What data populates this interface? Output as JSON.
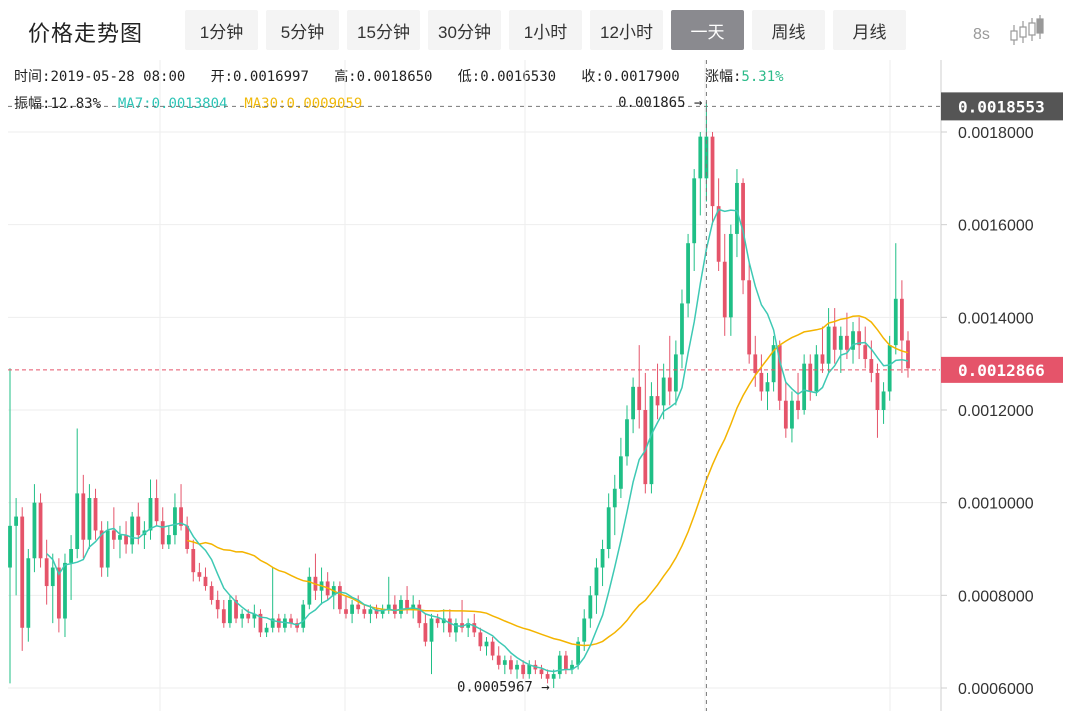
{
  "header": {
    "title": "价格走势图",
    "tabs": [
      {
        "label": "1分钟"
      },
      {
        "label": "5分钟"
      },
      {
        "label": "15分钟"
      },
      {
        "label": "30分钟"
      },
      {
        "label": "1小时"
      },
      {
        "label": "12小时"
      },
      {
        "label": "一天",
        "active": true
      },
      {
        "label": "周线"
      },
      {
        "label": "月线"
      }
    ],
    "refresh": "8s",
    "chart_icon": "candlestick-chart-icon"
  },
  "info": {
    "time_label": "时间:",
    "time": "2019-05-28 08:00",
    "open_label": "开:",
    "open": "0.0016997",
    "high_label": "高:",
    "high": "0.0018650",
    "low_label": "低:",
    "low": "0.0016530",
    "close_label": "收:",
    "close": "0.0017900",
    "change_label": "涨幅:",
    "change": "5.31%",
    "amp_label": "振幅:",
    "amp": "12.83%",
    "ma7_label": "MA7:",
    "ma7": "0.0013804",
    "ma30_label": "MA30:",
    "ma30": "0.0009059"
  },
  "colors": {
    "up": "#1fbf86",
    "down": "#e5546a",
    "ma7": "#3ec9b4",
    "ma30": "#f4b400",
    "grid": "#eeeeee",
    "crosshair": "#777777",
    "current": "#e5546a",
    "hover_tag": "#555555"
  },
  "chart_data": {
    "type": "candlestick",
    "ylim": [
      0.00058,
      0.00192
    ],
    "yticks": [
      "0.0018000",
      "0.0016000",
      "0.0014000",
      "0.0012000",
      "0.0010000",
      "0.0008000",
      "0.0006000"
    ],
    "high_marker": {
      "label": "0.001865 →",
      "value": 0.001865
    },
    "low_marker": {
      "label": "0.0005967 →",
      "value": 0.0005967
    },
    "crosshair_value": "0.0018553",
    "current_price": "0.0012866",
    "ohlc": [
      [
        0.00086,
        0.00129,
        0.00061,
        0.00095
      ],
      [
        0.00095,
        0.00101,
        0.0008,
        0.00097
      ],
      [
        0.00097,
        0.00099,
        0.00068,
        0.00073
      ],
      [
        0.00073,
        0.0009,
        0.0007,
        0.00088
      ],
      [
        0.00088,
        0.00104,
        0.00085,
        0.001
      ],
      [
        0.001,
        0.00102,
        0.00086,
        0.00088
      ],
      [
        0.00088,
        0.00092,
        0.00078,
        0.00082
      ],
      [
        0.00082,
        0.00089,
        0.00074,
        0.00086
      ],
      [
        0.00086,
        0.00088,
        0.00072,
        0.00075
      ],
      [
        0.00075,
        0.00089,
        0.00071,
        0.00087
      ],
      [
        0.00087,
        0.00093,
        0.00079,
        0.0009
      ],
      [
        0.0009,
        0.00116,
        0.00088,
        0.00102
      ],
      [
        0.00102,
        0.00106,
        0.00088,
        0.00092
      ],
      [
        0.00092,
        0.00104,
        0.0009,
        0.00101
      ],
      [
        0.00101,
        0.00103,
        0.00092,
        0.00094
      ],
      [
        0.00094,
        0.00096,
        0.00084,
        0.00086
      ],
      [
        0.00086,
        0.00096,
        0.00084,
        0.00094
      ],
      [
        0.00094,
        0.00099,
        0.0009,
        0.00092
      ],
      [
        0.00092,
        0.00095,
        0.00088,
        0.00093
      ],
      [
        0.00093,
        0.00096,
        0.00089,
        0.00091
      ],
      [
        0.00091,
        0.00098,
        0.00089,
        0.00097
      ],
      [
        0.00097,
        0.001,
        0.00091,
        0.00093
      ],
      [
        0.00093,
        0.00096,
        0.0009,
        0.00094
      ],
      [
        0.00094,
        0.00105,
        0.00092,
        0.00101
      ],
      [
        0.00101,
        0.00105,
        0.00095,
        0.00096
      ],
      [
        0.00096,
        0.00099,
        0.0009,
        0.00091
      ],
      [
        0.00091,
        0.00095,
        0.0009,
        0.00093
      ],
      [
        0.00093,
        0.00102,
        0.00091,
        0.00099
      ],
      [
        0.00099,
        0.00104,
        0.00094,
        0.00095
      ],
      [
        0.00095,
        0.00097,
        0.00089,
        0.0009
      ],
      [
        0.0009,
        0.00092,
        0.00083,
        0.00085
      ],
      [
        0.00085,
        0.00087,
        0.00083,
        0.00084
      ],
      [
        0.00084,
        0.00086,
        0.00081,
        0.00082
      ],
      [
        0.00082,
        0.00083,
        0.00078,
        0.00079
      ],
      [
        0.00079,
        0.00081,
        0.00075,
        0.00077
      ],
      [
        0.00077,
        0.00079,
        0.00073,
        0.00074
      ],
      [
        0.00074,
        0.0008,
        0.00073,
        0.00079
      ],
      [
        0.00079,
        0.0008,
        0.00074,
        0.00075
      ],
      [
        0.00075,
        0.00077,
        0.00073,
        0.00076
      ],
      [
        0.00076,
        0.00077,
        0.00074,
        0.00075
      ],
      [
        0.00075,
        0.00078,
        0.00073,
        0.00076
      ],
      [
        0.00076,
        0.00077,
        0.00071,
        0.00072
      ],
      [
        0.00072,
        0.00074,
        0.00071,
        0.00073
      ],
      [
        0.00073,
        0.00086,
        0.00072,
        0.00075
      ],
      [
        0.00075,
        0.00076,
        0.00072,
        0.00073
      ],
      [
        0.00073,
        0.00076,
        0.00072,
        0.00075
      ],
      [
        0.00075,
        0.00076,
        0.00073,
        0.00074
      ],
      [
        0.00074,
        0.00075,
        0.00072,
        0.00073
      ],
      [
        0.00073,
        0.00079,
        0.00072,
        0.00078
      ],
      [
        0.00078,
        0.00086,
        0.00077,
        0.00084
      ],
      [
        0.00084,
        0.00089,
        0.00079,
        0.00081
      ],
      [
        0.00081,
        0.00086,
        0.00078,
        0.00083
      ],
      [
        0.00083,
        0.00085,
        0.00079,
        0.0008
      ],
      [
        0.0008,
        0.00083,
        0.00077,
        0.00082
      ],
      [
        0.00082,
        0.00083,
        0.00076,
        0.00077
      ],
      [
        0.00077,
        0.0008,
        0.00075,
        0.00076
      ],
      [
        0.00076,
        0.00079,
        0.00074,
        0.00078
      ],
      [
        0.00078,
        0.0008,
        0.00076,
        0.00077
      ],
      [
        0.00077,
        0.00078,
        0.00075,
        0.00076
      ],
      [
        0.00076,
        0.00078,
        0.00074,
        0.00077
      ],
      [
        0.00077,
        0.00078,
        0.00075,
        0.00076
      ],
      [
        0.00076,
        0.00078,
        0.00075,
        0.00077
      ],
      [
        0.00077,
        0.00084,
        0.00076,
        0.00078
      ],
      [
        0.00078,
        0.0008,
        0.00075,
        0.00076
      ],
      [
        0.00076,
        0.0008,
        0.00075,
        0.00079
      ],
      [
        0.00079,
        0.00082,
        0.00076,
        0.00077
      ],
      [
        0.00077,
        0.0008,
        0.00075,
        0.00078
      ],
      [
        0.00078,
        0.00079,
        0.00073,
        0.00074
      ],
      [
        0.00074,
        0.00076,
        0.00069,
        0.0007
      ],
      [
        0.0007,
        0.00076,
        0.00063,
        0.00075
      ],
      [
        0.00075,
        0.00076,
        0.00073,
        0.00074
      ],
      [
        0.00074,
        0.00077,
        0.00072,
        0.00075
      ],
      [
        0.00075,
        0.00077,
        0.00071,
        0.00072
      ],
      [
        0.00072,
        0.00075,
        0.0007,
        0.00074
      ],
      [
        0.00074,
        0.00079,
        0.00072,
        0.00073
      ],
      [
        0.00073,
        0.00075,
        0.00071,
        0.00074
      ],
      [
        0.00074,
        0.00076,
        0.00071,
        0.00072
      ],
      [
        0.00072,
        0.00073,
        0.00068,
        0.00069
      ],
      [
        0.00069,
        0.00071,
        0.00067,
        0.0007
      ],
      [
        0.0007,
        0.00071,
        0.00066,
        0.00067
      ],
      [
        0.00067,
        0.00069,
        0.00064,
        0.00065
      ],
      [
        0.00065,
        0.00067,
        0.00063,
        0.00066
      ],
      [
        0.00066,
        0.00067,
        0.00063,
        0.00064
      ],
      [
        0.00064,
        0.00066,
        0.00062,
        0.00065
      ],
      [
        0.00065,
        0.00066,
        0.00062,
        0.00063
      ],
      [
        0.00063,
        0.00066,
        0.00062,
        0.00065
      ],
      [
        0.00065,
        0.00066,
        0.00063,
        0.00064
      ],
      [
        0.00064,
        0.00065,
        0.00062,
        0.00063
      ],
      [
        0.00063,
        0.00064,
        0.00061,
        0.00062
      ],
      [
        0.00062,
        0.00064,
        0.0006,
        0.00063
      ],
      [
        0.00063,
        0.00068,
        0.00062,
        0.00067
      ],
      [
        0.00067,
        0.00068,
        0.00063,
        0.00064
      ],
      [
        0.00064,
        0.00066,
        0.00063,
        0.00065
      ],
      [
        0.00065,
        0.00071,
        0.00064,
        0.0007
      ],
      [
        0.0007,
        0.00077,
        0.00068,
        0.00075
      ],
      [
        0.00075,
        0.00082,
        0.00073,
        0.0008
      ],
      [
        0.0008,
        0.00088,
        0.00076,
        0.00086
      ],
      [
        0.00086,
        0.00092,
        0.00082,
        0.0009
      ],
      [
        0.0009,
        0.00102,
        0.00088,
        0.00099
      ],
      [
        0.00099,
        0.00106,
        0.00093,
        0.00103
      ],
      [
        0.00103,
        0.00114,
        0.00101,
        0.0011
      ],
      [
        0.0011,
        0.00121,
        0.00108,
        0.00118
      ],
      [
        0.00118,
        0.00127,
        0.00115,
        0.00125
      ],
      [
        0.00125,
        0.00134,
        0.00116,
        0.0012
      ],
      [
        0.0012,
        0.00128,
        0.00102,
        0.00104
      ],
      [
        0.00104,
        0.00126,
        0.00102,
        0.00123
      ],
      [
        0.00123,
        0.0013,
        0.00118,
        0.00121
      ],
      [
        0.00121,
        0.0013,
        0.00118,
        0.00127
      ],
      [
        0.00127,
        0.00136,
        0.00121,
        0.00124
      ],
      [
        0.00124,
        0.00135,
        0.00121,
        0.00132
      ],
      [
        0.00132,
        0.00146,
        0.00129,
        0.00143
      ],
      [
        0.00143,
        0.00158,
        0.0014,
        0.00156
      ],
      [
        0.00156,
        0.00172,
        0.0015,
        0.0017
      ],
      [
        0.0017,
        0.0018,
        0.00162,
        0.00179
      ],
      [
        0.0017,
        0.001865,
        0.00165,
        0.00179
      ],
      [
        0.00179,
        0.0018,
        0.0016,
        0.00164
      ],
      [
        0.00164,
        0.0017,
        0.0015,
        0.00152
      ],
      [
        0.00152,
        0.00158,
        0.00136,
        0.0014
      ],
      [
        0.0014,
        0.0016,
        0.00136,
        0.00158
      ],
      [
        0.00158,
        0.00172,
        0.00153,
        0.00169
      ],
      [
        0.00169,
        0.0017,
        0.00145,
        0.00148
      ],
      [
        0.00148,
        0.00152,
        0.0013,
        0.00132
      ],
      [
        0.00132,
        0.00136,
        0.00125,
        0.00128
      ],
      [
        0.00128,
        0.00132,
        0.00122,
        0.00124
      ],
      [
        0.00124,
        0.00128,
        0.0012,
        0.00126
      ],
      [
        0.00126,
        0.00136,
        0.00124,
        0.00134
      ],
      [
        0.00134,
        0.00135,
        0.0012,
        0.00122
      ],
      [
        0.00122,
        0.00126,
        0.00114,
        0.00116
      ],
      [
        0.00116,
        0.00124,
        0.00113,
        0.00122
      ],
      [
        0.00122,
        0.00128,
        0.00118,
        0.0012
      ],
      [
        0.0012,
        0.00132,
        0.00119,
        0.0013
      ],
      [
        0.0013,
        0.00132,
        0.00122,
        0.00124
      ],
      [
        0.00124,
        0.00134,
        0.00123,
        0.00132
      ],
      [
        0.00132,
        0.00138,
        0.00128,
        0.0013
      ],
      [
        0.0013,
        0.00142,
        0.00128,
        0.00138
      ],
      [
        0.00138,
        0.00142,
        0.0013,
        0.00133
      ],
      [
        0.00133,
        0.00138,
        0.00128,
        0.00136
      ],
      [
        0.00136,
        0.00141,
        0.00131,
        0.00133
      ],
      [
        0.00133,
        0.00139,
        0.0013,
        0.00137
      ],
      [
        0.00137,
        0.0014,
        0.00131,
        0.00134
      ],
      [
        0.00134,
        0.00138,
        0.00129,
        0.00131
      ],
      [
        0.00131,
        0.00135,
        0.00126,
        0.00128
      ],
      [
        0.00128,
        0.0013,
        0.00114,
        0.0012
      ],
      [
        0.0012,
        0.00126,
        0.00117,
        0.00124
      ],
      [
        0.00124,
        0.00136,
        0.00122,
        0.00134
      ],
      [
        0.00134,
        0.00156,
        0.00132,
        0.00144
      ],
      [
        0.00144,
        0.00148,
        0.00128,
        0.00135
      ],
      [
        0.00135,
        0.00137,
        0.00127,
        0.00129
      ]
    ]
  }
}
